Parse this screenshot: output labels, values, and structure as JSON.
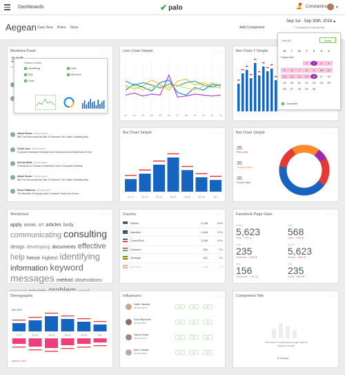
{
  "topbar": {
    "nav_label": "Dashboards",
    "logo_text": "palo",
    "user_name": "Constantinos"
  },
  "page": {
    "title": "Aegean",
    "tabs": [
      "Data View",
      "Roles",
      "Store"
    ],
    "add_component": "Add Component",
    "date_range": "Sep 1st - Sep 30th, 2016",
    "compare": "+ Compare to Last Month"
  },
  "datepicker": {
    "label": "Last 6D",
    "apply": "Apply",
    "month": "September",
    "weekdays": [
      "M",
      "T",
      "W",
      "T",
      "F",
      "S",
      "S"
    ],
    "compare_label": "Compare"
  },
  "mentions": {
    "title": "Mentions Feed",
    "count": "365",
    "count_label": "Mentions",
    "options_title": "Options Center",
    "options": [
      "Something",
      "Here",
      "Else",
      "And here",
      "Goes"
    ],
    "feed": [
      {
        "name": "Julie Ha...",
        "text": "Lorem ipsu..."
      },
      {
        "name": "Darrell ...",
        "text": "Lorem..."
      },
      {
        "name": "Albert Parker",
        "handle": "@Username",
        "text": "Will The Democrats Be Able To Reverse The Online Gambling Ban"
      },
      {
        "name": "Oscar Lane",
        "handle": "@Username",
        "text": "Computer Hardware Desktops And Notebooks And Handhelds Oh My"
      },
      {
        "name": "Dennis Willis",
        "handle": "@Username",
        "text": "3 Reasons To Choose A Notebook Over A Computer Desktop"
      },
      {
        "name": "Albert Parker",
        "handle": "@Username",
        "text": "Will The Democrats Be Able To Reverse The Online Gambling Ban"
      },
      {
        "name": "Rosie Patterson",
        "handle": "@Username",
        "text": "The Benefits Of Buying Used Computer Parts And Online..."
      }
    ]
  },
  "line_chart": {
    "title": "Line Chart Simple",
    "x_labels": [
      "01",
      "02",
      "03",
      "04",
      "05",
      "06",
      "07",
      "08",
      "09",
      "10",
      "11",
      "12"
    ]
  },
  "bar2": {
    "title": "Bar Chart 2 Simple"
  },
  "bar_simple": {
    "title": "Bar Chart Simple",
    "x_labels": [
      "13-17",
      "18-24",
      "25-34",
      "35-44",
      "45-54",
      "55-64",
      "65+"
    ]
  },
  "donut": {
    "title": "Bar Chart Simple",
    "items": [
      {
        "value": "35",
        "label": "Red Label",
        "color": "#e53935"
      },
      {
        "value": "35",
        "label": "Orange Label",
        "color": "#ff8a2a"
      },
      {
        "value": "35",
        "label": "Purple Label",
        "color": "#9c27b0"
      }
    ]
  },
  "wordcloud": {
    "title": "Wordcloud",
    "words": [
      [
        "apply",
        "7px"
      ],
      [
        "areas",
        "7px"
      ],
      [
        "art",
        "7px"
      ],
      [
        "articles",
        "7px"
      ],
      [
        "body",
        "7px"
      ],
      [
        "communicating",
        "11px"
      ],
      [
        "consulting",
        "14px"
      ],
      [
        "design",
        "7px"
      ],
      [
        "developing",
        "7px"
      ],
      [
        "documents",
        "7px"
      ],
      [
        "effective",
        "11px"
      ],
      [
        "help",
        "11px"
      ],
      [
        "hence",
        "7px"
      ],
      [
        "highest",
        "7px"
      ],
      [
        "identifying",
        "13px"
      ],
      [
        "information",
        "11px"
      ],
      [
        "keyword",
        "13px"
      ],
      [
        "messages",
        "14px"
      ],
      [
        "method",
        "7px"
      ],
      [
        "observations",
        "7px"
      ],
      [
        "present",
        "7px"
      ],
      [
        "principle",
        "7px"
      ],
      [
        "problem",
        "11px"
      ],
      [
        "rated",
        "7px"
      ]
    ]
  },
  "country": {
    "title": "Country",
    "rows": [
      [
        "Serbia",
        "2,148",
        "55%"
      ],
      [
        "Namibia",
        "1,848",
        "23%"
      ],
      [
        "Costa Rica",
        "1,438",
        "25%"
      ],
      [
        "Lebanon",
        "542",
        "3%"
      ],
      [
        "Senegal",
        "512",
        "2%"
      ],
      [
        "Moldova",
        "148",
        "1%"
      ]
    ]
  },
  "facebook": {
    "title": "Facebook Page Stats",
    "cells": [
      {
        "small": "5,623",
        "big": "5,623",
        "label": "Fans",
        "delta": "1.5%",
        "dir": "up"
      },
      {
        "small": "568",
        "big": "568",
        "label": "Likes",
        "delta": "1.5%",
        "dir": "dn"
      },
      {
        "small": "235",
        "big": "235",
        "label": "Reactions",
        "delta": "1.5%",
        "dir": "dn"
      },
      {
        "small": "5,623",
        "big": "5,623",
        "label": "Shares",
        "delta": "1.5%",
        "dir": "dn"
      },
      {
        "small": "156",
        "big": "156",
        "label": "Comments",
        "delta": "1.5%",
        "dir": "up"
      },
      {
        "small": "235",
        "big": "235",
        "label": "Clicks",
        "delta": "1.5%",
        "dir": "dn"
      }
    ]
  },
  "demographic": {
    "title": "Demographic",
    "men_label": "Men 89%",
    "women_label": "Women 19%",
    "x_labels": [
      "13-17",
      "18-24",
      "25-34",
      "35-44",
      "45-54",
      "55+"
    ]
  },
  "influencers": {
    "title": "Influencers",
    "rows": [
      {
        "name": "Sallie Stewart",
        "handle": "@Username"
      },
      {
        "name": "Eula Stephens",
        "handle": "@Username"
      },
      {
        "name": "Nancy Rowe",
        "handle": "@Username"
      },
      {
        "name": "Alice Castillo",
        "handle": "@Username"
      }
    ],
    "pill": "22"
  },
  "component": {
    "title": "Component Title",
    "message": "We haven't collected enough data to display results.",
    "reload": "Reload"
  },
  "colors": {
    "accent": "#9c27b0",
    "brand_green": "#2ea84a",
    "bar_blue": "#1565c0",
    "red": "#e53935",
    "pink": "#ec407a"
  }
}
